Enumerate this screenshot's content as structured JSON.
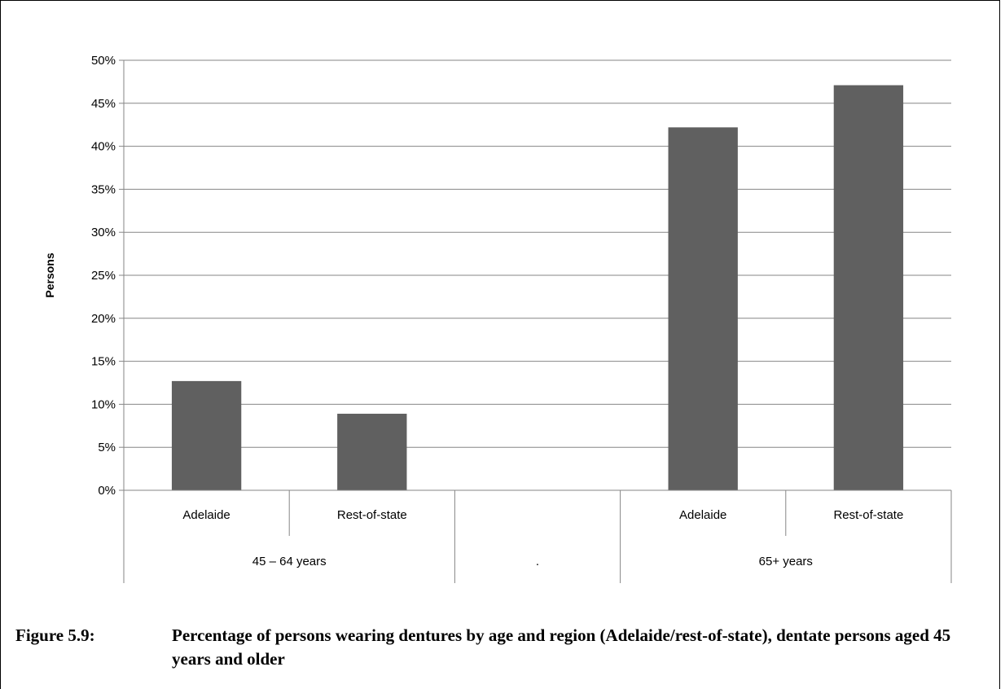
{
  "chart_data": {
    "type": "bar",
    "ylabel": "Persons",
    "ylim": [
      0,
      50
    ],
    "y_ticks": [
      "0%",
      "5%",
      "10%",
      "15%",
      "20%",
      "25%",
      "30%",
      "35%",
      "40%",
      "45%",
      "50%"
    ],
    "grid": true,
    "legend": "none",
    "bar_color": "#606060",
    "categories": [
      "Adelaide",
      "Rest-of-state",
      "",
      "Adelaide",
      "Rest-of-state"
    ],
    "groups": [
      {
        "label": "45 – 64 years",
        "span": 2
      },
      {
        "label": ".",
        "span": 1
      },
      {
        "label": "65+ years",
        "span": 2
      }
    ],
    "values": [
      12.7,
      8.9,
      null,
      42.2,
      47.1
    ]
  },
  "caption": {
    "number": "Figure 5.9:",
    "text": "Percentage of persons wearing dentures by age and region (Adelaide/rest-of-state), dentate persons aged 45 years and older"
  }
}
